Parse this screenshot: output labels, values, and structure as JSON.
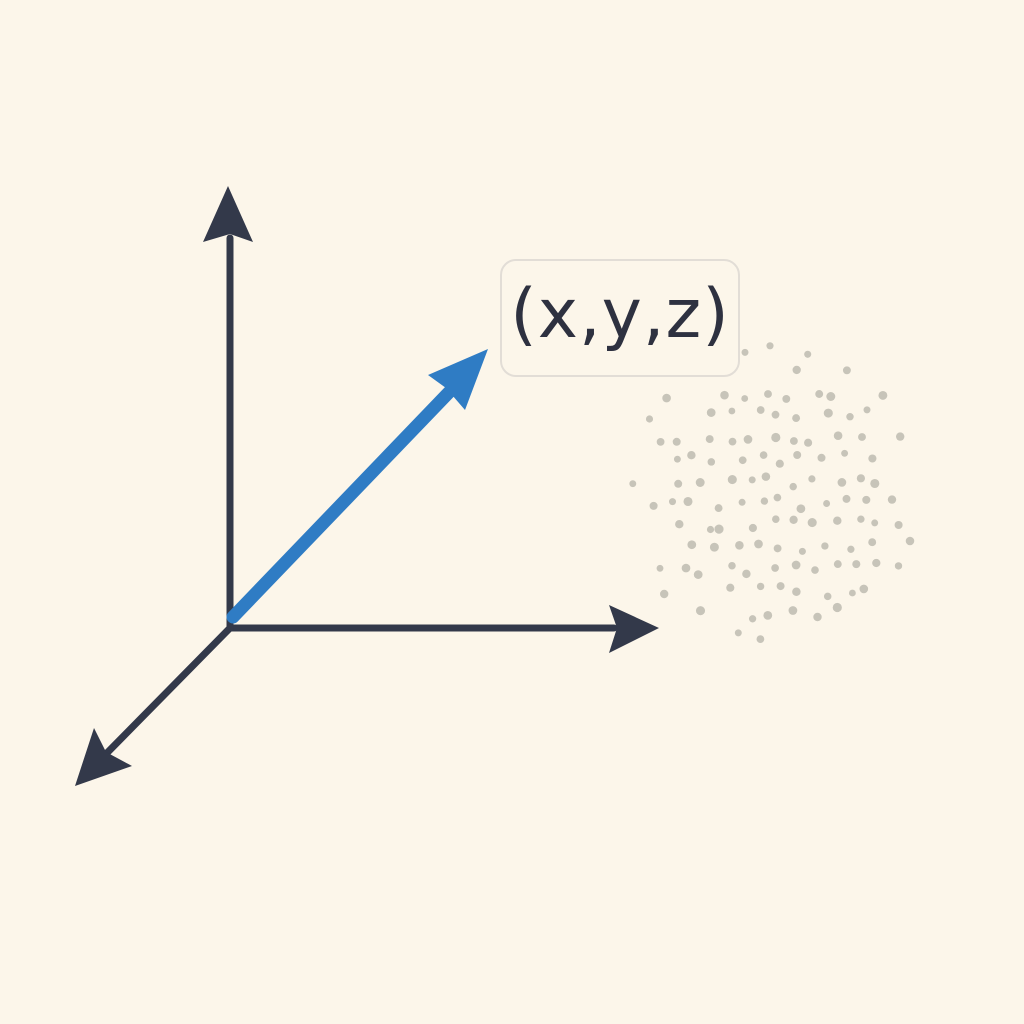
{
  "diagram": {
    "label": "(x,y,z)",
    "colors": {
      "background": "#fcf6ea",
      "axis": "#33394a",
      "vector": "#2f7cc4",
      "dots": "#c7c4b9"
    },
    "icons": [
      "y-axis-arrow",
      "x-axis-arrow",
      "z-axis-arrow",
      "position-vector-arrow",
      "point-cloud"
    ]
  }
}
